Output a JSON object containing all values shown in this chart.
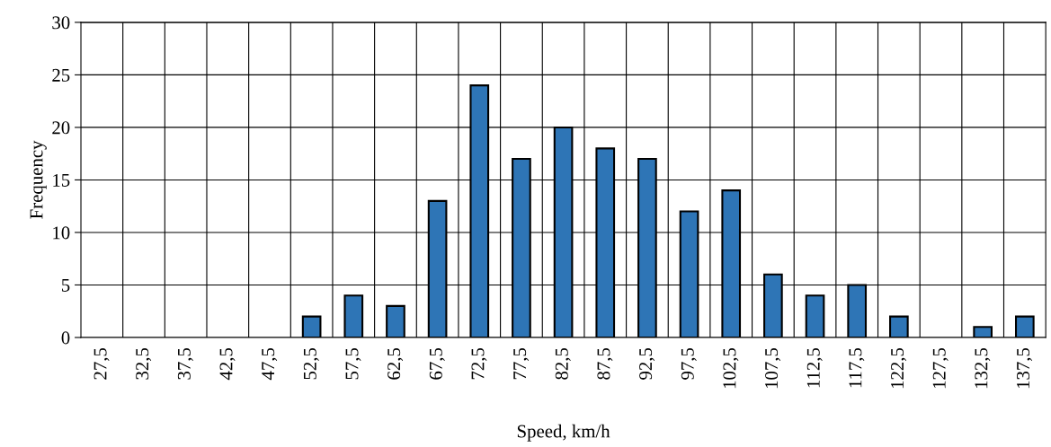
{
  "chart_data": {
    "type": "bar",
    "xlabel": "Speed, km/h",
    "ylabel": "Frequency",
    "categories": [
      "27,5",
      "32,5",
      "37,5",
      "42,5",
      "47,5",
      "52,5",
      "57,5",
      "62,5",
      "67,5",
      "72,5",
      "77,5",
      "82,5",
      "87,5",
      "92,5",
      "97,5",
      "102,5",
      "107,5",
      "112,5",
      "117,5",
      "122,5",
      "127,5",
      "132,5",
      "137,5"
    ],
    "values": [
      0,
      0,
      0,
      0,
      0,
      2,
      4,
      3,
      13,
      24,
      17,
      20,
      18,
      17,
      12,
      14,
      6,
      4,
      5,
      2,
      0,
      1,
      2
    ],
    "color": "#2e75b6",
    "ylim": [
      0,
      30
    ],
    "yticks": [
      0,
      5,
      10,
      15,
      20,
      25,
      30
    ],
    "grid": true
  }
}
